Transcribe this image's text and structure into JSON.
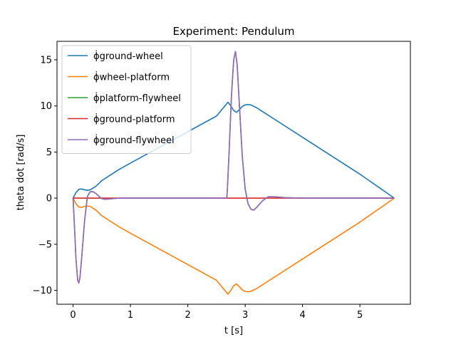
{
  "chart_data": {
    "type": "line",
    "title": "Experiment: Pendulum",
    "xlabel": "t [s]",
    "ylabel": "theta dot [rad/s]",
    "xlim": [
      -0.28,
      5.88
    ],
    "ylim": [
      -11.5,
      17.0
    ],
    "xticks": [
      0,
      1,
      2,
      3,
      4,
      5
    ],
    "xtick_labels": [
      "0",
      "1",
      "2",
      "3",
      "4",
      "5"
    ],
    "yticks": [
      -10,
      -5,
      0,
      5,
      10,
      15
    ],
    "ytick_labels": [
      "−10",
      "−5",
      "0",
      "5",
      "10",
      "15"
    ],
    "grid": false,
    "legend_position": "top-left",
    "series": [
      {
        "name": "ϕ̇ground-wheel",
        "color": "#1f77b4",
        "x": [
          0,
          0.05,
          0.1,
          0.15,
          0.2,
          0.25,
          0.3,
          0.4,
          0.5,
          0.6,
          0.8,
          1.0,
          1.5,
          2.0,
          2.5,
          2.7,
          2.75,
          2.8,
          2.85,
          2.9,
          2.95,
          3.0,
          3.05,
          3.1,
          3.2,
          3.3,
          3.4,
          3.5,
          4.0,
          4.5,
          5.0,
          5.6
        ],
        "y": [
          0,
          0.6,
          0.95,
          1.0,
          0.9,
          0.85,
          0.9,
          1.3,
          1.9,
          2.3,
          3.1,
          3.8,
          5.5,
          7.2,
          8.9,
          10.4,
          10.0,
          9.5,
          9.3,
          9.6,
          9.95,
          10.1,
          10.15,
          10.1,
          9.8,
          9.4,
          9.0,
          8.6,
          6.6,
          4.6,
          2.6,
          0
        ]
      },
      {
        "name": "ϕ̇wheel-platform",
        "color": "#ff7f0e",
        "x": [
          0,
          0.05,
          0.1,
          0.15,
          0.2,
          0.25,
          0.3,
          0.4,
          0.5,
          0.6,
          0.8,
          1.0,
          1.5,
          2.0,
          2.5,
          2.7,
          2.75,
          2.8,
          2.85,
          2.9,
          2.95,
          3.0,
          3.05,
          3.1,
          3.2,
          3.3,
          3.4,
          3.5,
          4.0,
          4.5,
          5.0,
          5.6
        ],
        "y": [
          0,
          -0.6,
          -0.95,
          -1.0,
          -0.9,
          -0.85,
          -0.9,
          -1.3,
          -1.9,
          -2.3,
          -3.1,
          -3.8,
          -5.5,
          -7.2,
          -8.9,
          -10.4,
          -10.0,
          -9.5,
          -9.3,
          -9.6,
          -9.95,
          -10.1,
          -10.15,
          -10.1,
          -9.8,
          -9.4,
          -9.0,
          -8.6,
          -6.6,
          -4.6,
          -2.6,
          0
        ]
      },
      {
        "name": "ϕ̇platform-flywheel",
        "color": "#2ca02c",
        "x": [
          0,
          0.02,
          0.05,
          0.08,
          0.1,
          0.12,
          0.15,
          0.2,
          0.25,
          0.3,
          0.35,
          0.4,
          0.45,
          0.5,
          0.55,
          0.6,
          0.7,
          0.8,
          1.0,
          2.0,
          2.68,
          2.69,
          2.72,
          2.76,
          2.8,
          2.83,
          2.86,
          2.9,
          2.95,
          3.0,
          3.05,
          3.1,
          3.15,
          3.2,
          3.3,
          3.4,
          3.5,
          3.7,
          4.0,
          5.0,
          5.6
        ],
        "y": [
          0,
          -2.5,
          -6.5,
          -8.9,
          -9.2,
          -8.6,
          -6.5,
          -2.5,
          0.2,
          0.7,
          0.7,
          0.5,
          0.2,
          -0.05,
          -0.12,
          -0.1,
          -0.05,
          0,
          0,
          0,
          0,
          1.0,
          5.0,
          11.0,
          15.0,
          15.9,
          14.5,
          10.0,
          4.5,
          1.0,
          -0.6,
          -1.2,
          -1.3,
          -1.0,
          -0.3,
          0.15,
          0.15,
          0.05,
          0,
          0,
          0
        ]
      },
      {
        "name": "ϕ̇ground-platform",
        "color": "#d62728",
        "x": [
          0,
          1,
          2,
          3,
          4,
          5,
          5.6
        ],
        "y": [
          0,
          0,
          0,
          0,
          0,
          0,
          0
        ]
      },
      {
        "name": "ϕ̇ground-flywheel",
        "color": "#9467bd",
        "x": [
          0,
          0.02,
          0.05,
          0.08,
          0.1,
          0.12,
          0.15,
          0.2,
          0.25,
          0.3,
          0.35,
          0.4,
          0.45,
          0.5,
          0.55,
          0.6,
          0.7,
          0.8,
          1.0,
          2.0,
          2.68,
          2.69,
          2.72,
          2.76,
          2.8,
          2.83,
          2.86,
          2.9,
          2.95,
          3.0,
          3.05,
          3.1,
          3.15,
          3.2,
          3.3,
          3.4,
          3.5,
          3.7,
          4.0,
          5.0,
          5.6
        ],
        "y": [
          0,
          -2.5,
          -6.5,
          -8.9,
          -9.2,
          -8.6,
          -6.5,
          -2.5,
          0.2,
          0.7,
          0.7,
          0.5,
          0.2,
          -0.05,
          -0.12,
          -0.1,
          -0.05,
          0,
          0,
          0,
          0,
          1.0,
          5.0,
          11.0,
          15.0,
          15.9,
          14.5,
          10.0,
          4.5,
          1.0,
          -0.6,
          -1.2,
          -1.3,
          -1.0,
          -0.3,
          0.15,
          0.15,
          0.05,
          0,
          0,
          0
        ]
      }
    ]
  }
}
